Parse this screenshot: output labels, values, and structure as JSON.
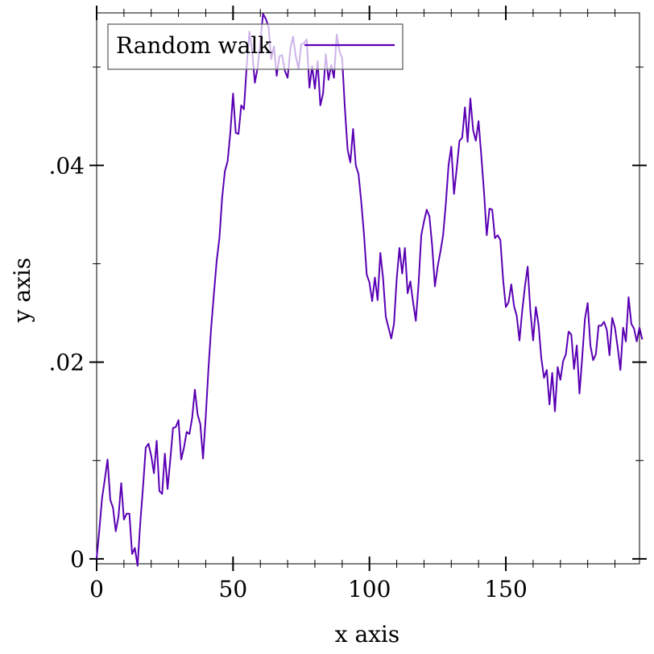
{
  "chart_data": {
    "type": "line",
    "xlabel": "x axis",
    "ylabel": "y axis",
    "xlim": [
      0,
      199
    ],
    "ylim": [
      -0.0005,
      0.0555
    ],
    "x_ticks": [
      0,
      50,
      100,
      150
    ],
    "x_tick_labels": [
      "0",
      "50",
      "100",
      "150"
    ],
    "x_minor_ticks": [
      10,
      20,
      30,
      40,
      60,
      70,
      80,
      90,
      110,
      120,
      130,
      140,
      160,
      170,
      180,
      190
    ],
    "y_ticks": [
      0,
      0.02,
      0.04
    ],
    "y_tick_labels": [
      "0",
      ".02",
      ".04"
    ],
    "y_minor_ticks": [
      0.01,
      0.03,
      0.05
    ],
    "grid": false,
    "legend_position": "top-left",
    "series": [
      {
        "name": "Random walk",
        "color": "#5a00b4",
        "x_start": 0,
        "x_step": 1,
        "values": [
          0,
          0.003,
          0.0062,
          0.0081,
          0.0101,
          0.006,
          0.0052,
          0.0028,
          0.0043,
          0.0077,
          0.004,
          0.0046,
          0.0046,
          0.0005,
          0.0011,
          -0.0007,
          0.0037,
          0.0073,
          0.0113,
          0.0117,
          0.0105,
          0.0087,
          0.012,
          0.0069,
          0.0066,
          0.0107,
          0.0071,
          0.0101,
          0.0133,
          0.0134,
          0.0141,
          0.0101,
          0.0113,
          0.0129,
          0.0127,
          0.0143,
          0.0172,
          0.0147,
          0.0137,
          0.0102,
          0.0145,
          0.0194,
          0.0236,
          0.027,
          0.0303,
          0.0326,
          0.0367,
          0.0394,
          0.0404,
          0.0433,
          0.0473,
          0.0433,
          0.0432,
          0.0461,
          0.0457,
          0.0501,
          0.0536,
          0.0516,
          0.0484,
          0.0499,
          0.0526,
          0.0554,
          0.0549,
          0.0541,
          0.0508,
          0.0521,
          0.0491,
          0.0511,
          0.0512,
          0.0496,
          0.0489,
          0.0518,
          0.0531,
          0.0511,
          0.0498,
          0.0523,
          0.0524,
          0.0528,
          0.0479,
          0.0501,
          0.0478,
          0.0506,
          0.0461,
          0.0473,
          0.0513,
          0.0487,
          0.0502,
          0.0489,
          0.0533,
          0.0516,
          0.0509,
          0.0458,
          0.0416,
          0.0403,
          0.0437,
          0.04,
          0.0391,
          0.0363,
          0.033,
          0.0289,
          0.0281,
          0.0262,
          0.0286,
          0.0263,
          0.0311,
          0.0285,
          0.0246,
          0.0235,
          0.0224,
          0.0239,
          0.0285,
          0.0316,
          0.029,
          0.0316,
          0.027,
          0.0282,
          0.0261,
          0.0242,
          0.0279,
          0.0329,
          0.0343,
          0.0355,
          0.0348,
          0.0318,
          0.0277,
          0.0297,
          0.0312,
          0.0329,
          0.0361,
          0.04,
          0.0419,
          0.0371,
          0.0397,
          0.0425,
          0.0428,
          0.0459,
          0.0424,
          0.0468,
          0.0436,
          0.0425,
          0.0445,
          0.041,
          0.0373,
          0.0329,
          0.0356,
          0.0355,
          0.0326,
          0.0329,
          0.0324,
          0.0284,
          0.0256,
          0.0261,
          0.0279,
          0.0257,
          0.0247,
          0.0222,
          0.0252,
          0.0277,
          0.0297,
          0.0252,
          0.0222,
          0.0256,
          0.0238,
          0.0204,
          0.0184,
          0.0192,
          0.0157,
          0.0189,
          0.015,
          0.0195,
          0.0182,
          0.0201,
          0.0208,
          0.0231,
          0.0228,
          0.0193,
          0.0217,
          0.0168,
          0.0205,
          0.0244,
          0.026,
          0.0217,
          0.0202,
          0.0208,
          0.0237,
          0.0237,
          0.0241,
          0.0233,
          0.0207,
          0.0245,
          0.0235,
          0.0215,
          0.0192,
          0.0235,
          0.0221,
          0.0266,
          0.0239,
          0.0234,
          0.0221,
          0.0235,
          0.0223
        ]
      }
    ]
  }
}
